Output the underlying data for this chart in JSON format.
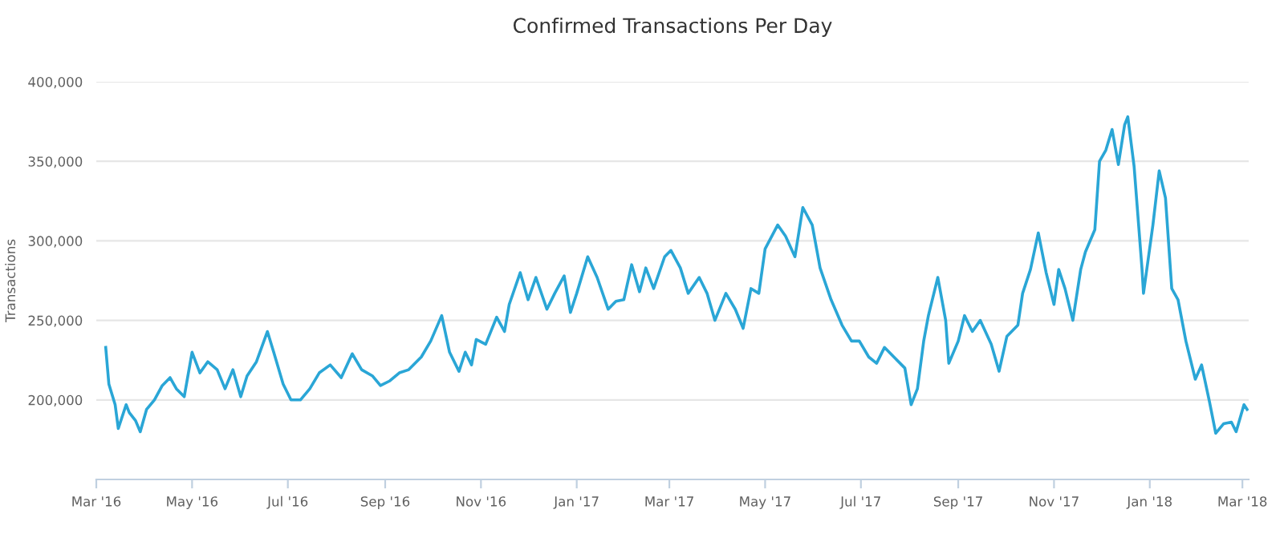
{
  "chart_data": {
    "type": "line",
    "title": "Confirmed Transactions Per Day",
    "ylabel": "Transactions",
    "ylim": [
      150000,
      400000
    ],
    "yticks": [
      {
        "value": 200000,
        "label": "200,000"
      },
      {
        "value": 250000,
        "label": "250,000"
      },
      {
        "value": 300000,
        "label": "300,000"
      },
      {
        "value": 350000,
        "label": "350,000"
      },
      {
        "value": 400000,
        "label": "400,000"
      }
    ],
    "xlim": [
      "2016-03-01",
      "2018-03-05"
    ],
    "xticks": [
      {
        "value": "2016-03-01",
        "label": "Mar '16"
      },
      {
        "value": "2016-05-01",
        "label": "May '16"
      },
      {
        "value": "2016-07-01",
        "label": "Jul '16"
      },
      {
        "value": "2016-09-01",
        "label": "Sep '16"
      },
      {
        "value": "2016-11-01",
        "label": "Nov '16"
      },
      {
        "value": "2017-01-01",
        "label": "Jan '17"
      },
      {
        "value": "2017-03-01",
        "label": "Mar '17"
      },
      {
        "value": "2017-05-01",
        "label": "May '17"
      },
      {
        "value": "2017-07-01",
        "label": "Jul '17"
      },
      {
        "value": "2017-09-01",
        "label": "Sep '17"
      },
      {
        "value": "2017-11-01",
        "label": "Nov '17"
      },
      {
        "value": "2018-01-01",
        "label": "Jan '18"
      },
      {
        "value": "2018-03-01",
        "label": "Mar '18"
      }
    ],
    "grid": "y",
    "marker": "none",
    "line_style": "solid",
    "x": [
      "2016-03-07",
      "2016-03-09",
      "2016-03-13",
      "2016-03-15",
      "2016-03-20",
      "2016-03-22",
      "2016-03-26",
      "2016-03-29",
      "2016-04-02",
      "2016-04-07",
      "2016-04-12",
      "2016-04-17",
      "2016-04-21",
      "2016-04-26",
      "2016-05-01",
      "2016-05-06",
      "2016-05-11",
      "2016-05-17",
      "2016-05-22",
      "2016-05-27",
      "2016-06-01",
      "2016-06-05",
      "2016-06-11",
      "2016-06-18",
      "2016-06-22",
      "2016-06-28",
      "2016-07-03",
      "2016-07-09",
      "2016-07-15",
      "2016-07-21",
      "2016-07-28",
      "2016-08-04",
      "2016-08-11",
      "2016-08-17",
      "2016-08-24",
      "2016-08-29",
      "2016-09-04",
      "2016-09-10",
      "2016-09-16",
      "2016-09-24",
      "2016-09-30",
      "2016-10-07",
      "2016-10-12",
      "2016-10-18",
      "2016-10-22",
      "2016-10-26",
      "2016-10-29",
      "2016-11-04",
      "2016-11-11",
      "2016-11-16",
      "2016-11-19",
      "2016-11-26",
      "2016-12-01",
      "2016-12-06",
      "2016-12-13",
      "2016-12-18",
      "2016-12-24",
      "2016-12-28",
      "2017-01-01",
      "2017-01-08",
      "2017-01-14",
      "2017-01-21",
      "2017-01-26",
      "2017-01-31",
      "2017-02-05",
      "2017-02-10",
      "2017-02-14",
      "2017-02-19",
      "2017-02-26",
      "2017-03-02",
      "2017-03-08",
      "2017-03-13",
      "2017-03-20",
      "2017-03-25",
      "2017-03-30",
      "2017-04-06",
      "2017-04-12",
      "2017-04-17",
      "2017-04-22",
      "2017-04-27",
      "2017-05-01",
      "2017-05-09",
      "2017-05-14",
      "2017-05-20",
      "2017-05-25",
      "2017-05-31",
      "2017-06-05",
      "2017-06-12",
      "2017-06-19",
      "2017-06-25",
      "2017-06-30",
      "2017-07-06",
      "2017-07-11",
      "2017-07-16",
      "2017-07-22",
      "2017-07-29",
      "2017-08-02",
      "2017-08-06",
      "2017-08-10",
      "2017-08-13",
      "2017-08-19",
      "2017-08-24",
      "2017-08-26",
      "2017-09-01",
      "2017-09-05",
      "2017-09-10",
      "2017-09-15",
      "2017-09-22",
      "2017-09-27",
      "2017-10-02",
      "2017-10-09",
      "2017-10-12",
      "2017-10-17",
      "2017-10-22",
      "2017-10-27",
      "2017-11-01",
      "2017-11-04",
      "2017-11-08",
      "2017-11-13",
      "2017-11-18",
      "2017-11-21",
      "2017-11-27",
      "2017-11-30",
      "2017-12-04",
      "2017-12-08",
      "2017-12-12",
      "2017-12-16",
      "2017-12-18",
      "2017-12-22",
      "2017-12-27",
      "2017-12-28",
      "2018-01-03",
      "2018-01-07",
      "2018-01-11",
      "2018-01-15",
      "2018-01-19",
      "2018-01-24",
      "2018-01-30",
      "2018-02-03",
      "2018-02-08",
      "2018-02-12",
      "2018-02-17",
      "2018-02-22",
      "2018-02-25",
      "2018-03-02",
      "2018-03-04"
    ],
    "series": [
      {
        "color": "#2aa6d6",
        "values": [
          233000,
          210000,
          197000,
          182000,
          197000,
          192000,
          187000,
          180000,
          194000,
          200000,
          209000,
          214000,
          207000,
          202000,
          230000,
          217000,
          224000,
          219000,
          207000,
          219000,
          202000,
          215000,
          224000,
          243000,
          230000,
          210000,
          200000,
          200000,
          207000,
          217000,
          222000,
          214000,
          229000,
          219000,
          215000,
          209000,
          212000,
          217000,
          219000,
          227000,
          237000,
          253000,
          230000,
          218000,
          230000,
          222000,
          238000,
          235000,
          252000,
          243000,
          260000,
          280000,
          263000,
          277000,
          257000,
          267000,
          278000,
          255000,
          267000,
          290000,
          277000,
          257000,
          262000,
          263000,
          285000,
          268000,
          283000,
          270000,
          290000,
          294000,
          283000,
          267000,
          277000,
          267000,
          250000,
          267000,
          257000,
          245000,
          270000,
          267000,
          295000,
          310000,
          303000,
          290000,
          321000,
          310000,
          283000,
          263000,
          247000,
          237000,
          237000,
          227000,
          223000,
          233000,
          227000,
          220000,
          197000,
          207000,
          237000,
          253000,
          277000,
          250000,
          223000,
          237000,
          253000,
          243000,
          250000,
          235000,
          218000,
          240000,
          247000,
          267000,
          282000,
          305000,
          280000,
          260000,
          282000,
          270000,
          250000,
          282000,
          293000,
          307000,
          350000,
          357000,
          370000,
          348000,
          373000,
          378000,
          347000,
          283000,
          267000,
          310000,
          344000,
          327000,
          270000,
          263000,
          237000,
          213000,
          222000,
          199000,
          179000,
          185000,
          186000,
          180000,
          197000,
          194000
        ]
      }
    ]
  }
}
